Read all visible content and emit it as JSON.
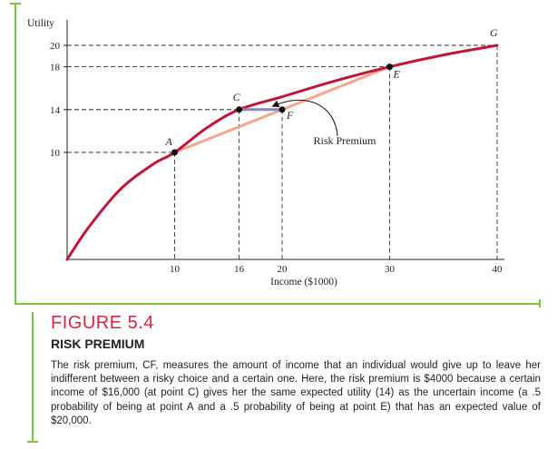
{
  "figure": {
    "number": "FIGURE 5.4",
    "title": "RISK PREMIUM",
    "caption": "The risk premium, CF, measures the amount of income that an individual would give up to leave her indifferent between a risky choice and a certain one. Here, the risk premium is $4000 because a certain income of $16,000 (at point C) gives her the same expected utility (14) as the uncertain income (a .5 probability of being at point A and a .5 probability of being at point E) that has an expected value of $20,000."
  },
  "chart_data": {
    "type": "line",
    "title": "",
    "xlabel": "Income ($1000)",
    "ylabel": "Utility",
    "xlim": [
      0,
      40
    ],
    "ylim": [
      0,
      20
    ],
    "x_ticks": [
      10,
      16,
      20,
      30,
      40
    ],
    "y_ticks": [
      10,
      14,
      18,
      20
    ],
    "series": [
      {
        "color": "#c0163a",
        "x": [
          0,
          2,
          5,
          8,
          10,
          13,
          16,
          20,
          25,
          30,
          35,
          40
        ],
        "y": [
          0,
          3.0,
          6.6,
          8.9,
          10,
          12.3,
          14,
          15.2,
          16.7,
          18,
          19.1,
          20
        ]
      }
    ],
    "chord": {
      "from": "A",
      "to": "E",
      "color": "#f4a78d"
    },
    "risk_segment": {
      "from": "C",
      "to": "F",
      "color": "#8a86b8"
    },
    "points": [
      {
        "label": "A",
        "x": 10,
        "y": 10,
        "marker": true
      },
      {
        "label": "C",
        "x": 16,
        "y": 14,
        "marker": true
      },
      {
        "label": "F",
        "x": 20,
        "y": 14,
        "marker": true
      },
      {
        "label": "E",
        "x": 30,
        "y": 18,
        "marker": true
      },
      {
        "label": "G",
        "x": 40,
        "y": 20,
        "marker": false
      }
    ],
    "annotation": "Risk Premium",
    "dashed_guides": true
  }
}
